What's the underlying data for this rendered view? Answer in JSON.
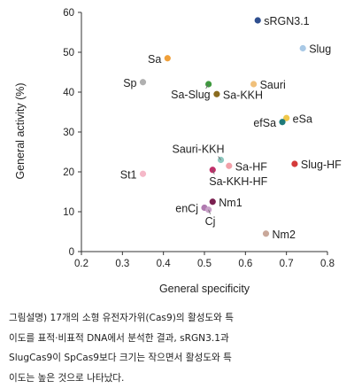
{
  "chart_data": {
    "type": "scatter",
    "xlabel": "General specificity",
    "ylabel": "General activity (%)",
    "xlim": [
      0.2,
      0.8
    ],
    "ylim": [
      0,
      60
    ],
    "xticks": [
      "0.2",
      "0.3",
      "0.4",
      "0.5",
      "0.6",
      "0.7",
      "0.8"
    ],
    "yticks": [
      "0",
      "10",
      "20",
      "30",
      "40",
      "50",
      "60"
    ],
    "grid": false,
    "points": [
      {
        "label": "sRGN3.1",
        "x": 0.63,
        "y": 58,
        "color": "#2f4f8f",
        "label_side": "right"
      },
      {
        "label": "Slug",
        "x": 0.74,
        "y": 51,
        "color": "#a9c9e6",
        "label_side": "right"
      },
      {
        "label": "Sa",
        "x": 0.41,
        "y": 48.5,
        "color": "#f0a03a",
        "label_side": "left"
      },
      {
        "label": "Sp",
        "x": 0.35,
        "y": 42.5,
        "color": "#b0b0b0",
        "label_side": "left"
      },
      {
        "label": "Sa-Slug",
        "x": 0.51,
        "y": 42,
        "color": "#3f9a3f",
        "label_side": "below-left"
      },
      {
        "label": "Sauri",
        "x": 0.62,
        "y": 42,
        "color": "#f0c07a",
        "label_side": "right"
      },
      {
        "label": "Sa-KKH",
        "x": 0.53,
        "y": 39.5,
        "color": "#8a6b1f",
        "label_side": "right"
      },
      {
        "label": "eSa",
        "x": 0.7,
        "y": 33.5,
        "color": "#f0c84a",
        "label_side": "right"
      },
      {
        "label": "efSa",
        "x": 0.69,
        "y": 32.5,
        "color": "#1f7a7a",
        "label_side": "left"
      },
      {
        "label": "Sauri-KKH",
        "x": 0.54,
        "y": 23,
        "color": "#8fc9c0",
        "label_side": "above-left"
      },
      {
        "label": "Sa-HF",
        "x": 0.56,
        "y": 21.5,
        "color": "#f2a0a8",
        "label_side": "right"
      },
      {
        "label": "Slug-HF",
        "x": 0.72,
        "y": 22,
        "color": "#d43a3a",
        "label_side": "right"
      },
      {
        "label": "Sa-KKH-HF",
        "x": 0.52,
        "y": 20.5,
        "color": "#c0306a",
        "label_side": "below-right"
      },
      {
        "label": "St1",
        "x": 0.35,
        "y": 19.5,
        "color": "#f5b8c8",
        "label_side": "left"
      },
      {
        "label": "Nm1",
        "x": 0.52,
        "y": 12.5,
        "color": "#7a2050",
        "label_side": "right"
      },
      {
        "label": "enCj",
        "x": 0.5,
        "y": 11,
        "color": "#b07ab0",
        "label_side": "left"
      },
      {
        "label": "Cj",
        "x": 0.51,
        "y": 10.5,
        "color": "#c8a0c8",
        "label_side": "below-right"
      },
      {
        "label": "Nm2",
        "x": 0.65,
        "y": 4.5,
        "color": "#c9a89a",
        "label_side": "right"
      }
    ]
  },
  "caption": {
    "lines": [
      "그림설명) 17개의 소형 유전자가위(Cas9)의 활성도와 특",
      "이도를 표적·비표적 DNA에서 분석한 결과, sRGN3.1과",
      "SlugCas9이 SpCas9보다 크기는 작으면서 활성도와 특",
      "이도는 높은 것으로 나타났다."
    ]
  }
}
